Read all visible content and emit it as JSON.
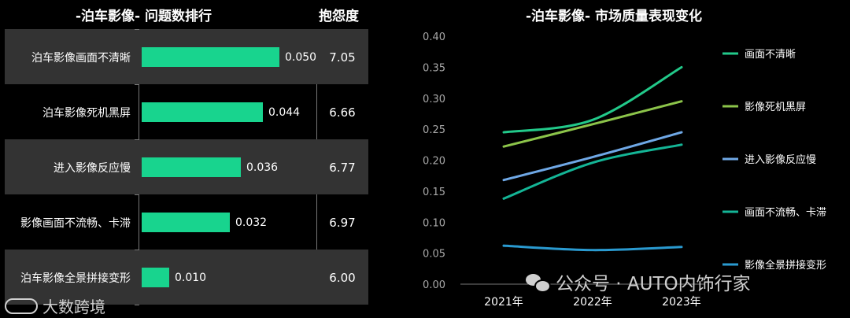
{
  "left_chart": {
    "title": "-泊车影像- 问题数排行",
    "score_header": "抱怨度",
    "rows": [
      {
        "label": "泊车影像画面不清晰",
        "value": 0.05,
        "value_label": "0.050",
        "score": "7.05"
      },
      {
        "label": "泊车影像死机黑屏",
        "value": 0.044,
        "value_label": "0.044",
        "score": "6.66"
      },
      {
        "label": "进入影像反应慢",
        "value": 0.036,
        "value_label": "0.036",
        "score": "6.77"
      },
      {
        "label": "影像画面不流畅、卡滞",
        "value": 0.032,
        "value_label": "0.032",
        "score": "6.97"
      },
      {
        "label": "泊车影像全景拼接变形",
        "value": 0.01,
        "value_label": "0.010",
        "score": "6.00"
      }
    ]
  },
  "chart_data": [
    {
      "type": "bar",
      "title": "-泊车影像- 问题数排行",
      "categories": [
        "泊车影像画面不清晰",
        "泊车影像死机黑屏",
        "进入影像反应慢",
        "影像画面不流畅、卡滞",
        "泊车影像全景拼接变形"
      ],
      "values": [
        0.05,
        0.044,
        0.036,
        0.032,
        0.01
      ],
      "extra_column": {
        "header": "抱怨度",
        "values": [
          7.05,
          6.66,
          6.77,
          6.97,
          6.0
        ]
      },
      "orientation": "horizontal",
      "color": "#18d48e"
    },
    {
      "type": "line",
      "title": "-泊车影像- 市场质量表现变化",
      "x": [
        "2021年",
        "2022年",
        "2023年"
      ],
      "ylim": [
        0,
        0.4
      ],
      "yticks": [
        "0.00",
        "0.05",
        "0.10",
        "0.15",
        "0.20",
        "0.25",
        "0.30",
        "0.35",
        "0.40"
      ],
      "legend": "right",
      "series": [
        {
          "name": "画面不清晰",
          "values": [
            0.245,
            0.265,
            0.35
          ],
          "color": "#22c98a"
        },
        {
          "name": "影像死机黑屏",
          "values": [
            0.222,
            0.258,
            0.295
          ],
          "color": "#8cc44a"
        },
        {
          "name": "进入影像反应慢",
          "values": [
            0.168,
            0.205,
            0.245
          ],
          "color": "#6fa8e6"
        },
        {
          "name": "画面不流畅、卡滞",
          "values": [
            0.138,
            0.196,
            0.225
          ],
          "color": "#14b596"
        },
        {
          "name": "影像全景拼接变形",
          "values": [
            0.062,
            0.055,
            0.06
          ],
          "color": "#2a9ad0"
        }
      ]
    }
  ],
  "watermarks": {
    "left_logo_text": "大数跨境",
    "right_text": "公众号 · AUTO内饰行家"
  }
}
